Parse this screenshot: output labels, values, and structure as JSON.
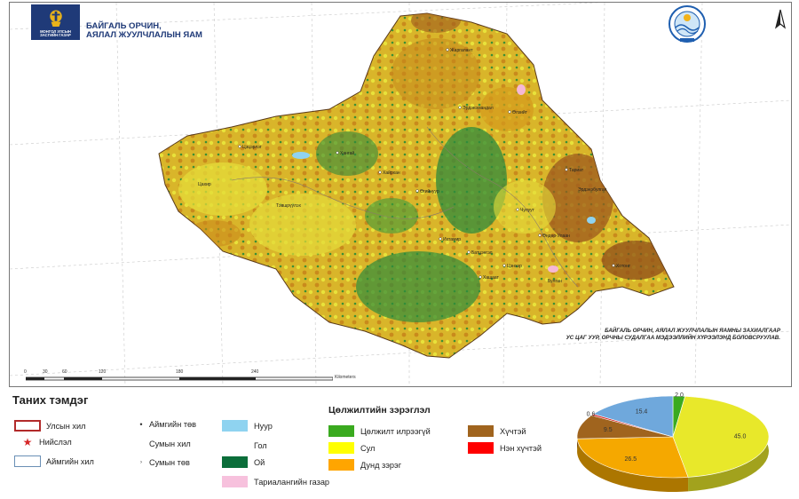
{
  "header": {
    "logo_text": "МОНГОЛ УЛСЫН\nЗАСГИЙН ГАЗАР",
    "ministry_line1": "БАЙГАЛЬ ОРЧИН,",
    "ministry_line2": "АЯЛАЛ ЖУУЛЧЛАЛЫН ЯАМ"
  },
  "map": {
    "credit_line1": "БАЙГАЛЬ ОРЧИН, АЯЛАЛ ЖУУЛЧЛАЛЫН ЯАМНЫ ЗАХИАЛГААР",
    "credit_line2": "УС ЦАГ УУР, ОРЧНЫ СУДАЛГАА МЭДЭЭЛЛИЙН ХҮРЭЭЛЭНД БОЛОВСРУУЛАВ.",
    "scale_ticks": [
      "0",
      "30",
      "60",
      "120",
      "180",
      "240"
    ],
    "scale_unit": "Kilometers",
    "place_labels": [
      "Цэцэрлэг",
      "Хангай",
      "Хайрхан",
      "Эрдэнэмандал",
      "Өлзийт",
      "Тариат",
      "Чулуут",
      "Ихтамир",
      "Батцэнгэл",
      "Цэнхэр",
      "Хашаат",
      "Хотонт",
      "Өгийнуур",
      "Өндөр-Улаан",
      "Жаргалант",
      "Тэвшрүүлэх",
      "Эрдэнэбулган",
      "Цахир",
      "Булган"
    ],
    "colors": {
      "light": "#e8e23a",
      "medium": "#d49a1c",
      "heavy": "#a0641e",
      "forest": "#2e8b3c",
      "lake": "#8fd3f0",
      "crop": "#f5b8d6"
    }
  },
  "legend": {
    "title": "Таних тэмдэг",
    "items": {
      "state_border": "Улсын хил",
      "capital": "Нийслэл",
      "aimag_border": "Аймгийн хил",
      "aimag_center": "Аймгийн төв",
      "soum_border": "Сумын хил",
      "soum_center": "Сумын төв",
      "lake": "Нуур",
      "river": "Гол",
      "forest": "Ой",
      "cropland": "Тариалангийн газар"
    },
    "desert_title": "Цөлжилтийн зэрэглэл",
    "desert_classes": [
      {
        "label": "Цөлжилт илрээгүй",
        "color": "#3aaa1f"
      },
      {
        "label": "Сул",
        "color": "#ffff00"
      },
      {
        "label": "Дунд зэрэг",
        "color": "#ffa500"
      },
      {
        "label": "Хүчтэй",
        "color": "#a0641e"
      },
      {
        "label": "Нэн хүчтэй",
        "color": "#ff0000"
      }
    ]
  },
  "chart_data": {
    "type": "pie",
    "title": "",
    "slices": [
      {
        "label": "Цөлжилт илрээгүй",
        "value": 2.0,
        "color": "#3aaa1f"
      },
      {
        "label": "Сул",
        "value": 45.0,
        "color": "#e8e82a"
      },
      {
        "label": "Дунд зэрэг",
        "value": 26.5,
        "color": "#f5a800"
      },
      {
        "label": "Хүчтэй",
        "value": 9.5,
        "color": "#a0641e"
      },
      {
        "label": "Нэн хүчтэй",
        "value": 0.6,
        "color": "#d62020"
      },
      {
        "label": "",
        "value": 15.4,
        "color": "#6fa8dc"
      }
    ],
    "value_labels": [
      "2.0",
      "45.0",
      "26.5",
      "9.5",
      "0.6",
      "15.4"
    ],
    "style": "3d"
  }
}
